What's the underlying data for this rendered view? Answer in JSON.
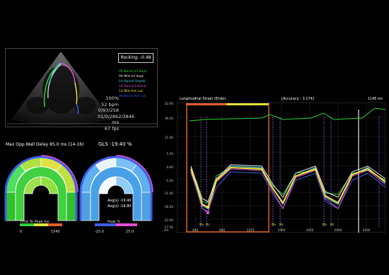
{
  "echo": {
    "rocking": "Rocking: -0.48",
    "segments": [
      {
        "label": "05-Basal Inf Sept",
        "color": "#2fd13a"
      },
      {
        "label": "09-Mid Inf Sept",
        "color": "#e8e8e8"
      },
      {
        "label": "14-Apical Septal",
        "color": "#46d6f0"
      },
      {
        "label": "16-Apical Lateral",
        "color": "#e84fd0"
      },
      {
        "label": "12-Mid Ant Lat",
        "color": "#f0e040"
      },
      {
        "label": "06-Basal Ant Lat",
        "color": "#3f5de8"
      }
    ],
    "info": [
      "100%",
      "52 bpm",
      "0/93/258",
      "01/0/2862/3846 ms",
      "67 fps"
    ]
  },
  "bullseye": {
    "left_title": "Max Opp Wall Delay 85.0 ms (14-16)",
    "right_title": "GLS -19.40 %",
    "left_legend": "Time To Peak ms",
    "left_range": [
      "0",
      "1540"
    ],
    "right_legend": "Peak %",
    "right_range": [
      "-25.0",
      "25.0"
    ],
    "avg_lines": [
      "Avg(s) -19.40",
      "Avg(s) -18.80"
    ]
  },
  "strain": {
    "title": "Longitudinal Strain (Endo)",
    "accuracy": "[Accuracy : 3.174]",
    "time": "1148 ms",
    "y_ticks": [
      "22.00",
      "16.50",
      "11.00",
      "5.50",
      "0.00",
      "-5.50",
      "-11.00",
      "-16.50",
      "-22.00",
      "-27.50"
    ],
    "x_unit": "ms",
    "x_ticks": [
      "490",
      "980",
      "1470",
      "1960",
      "2450",
      "2940",
      "3430"
    ],
    "event_labels": [
      "Mo",
      "Mc",
      "Mo",
      "Mc",
      "Mo",
      "Mc"
    ]
  },
  "colors": {
    "green": "#2fd13a",
    "white": "#e8e8e8",
    "cyan": "#46d6f0",
    "magenta": "#e84fd0",
    "yellow": "#f0e040",
    "blue": "#3f5de8",
    "orange": "#e0602a",
    "purple": "#9060e8"
  }
}
